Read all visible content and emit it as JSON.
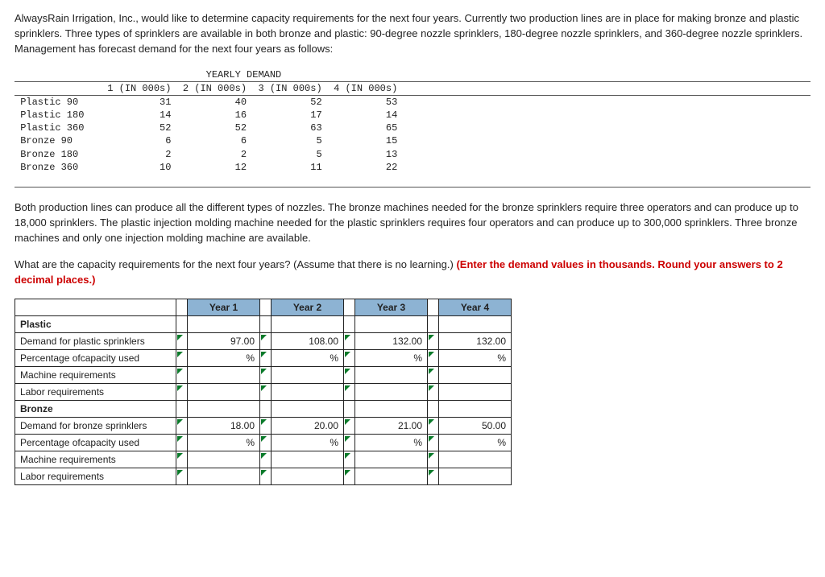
{
  "intro_para": "AlwaysRain Irrigation, Inc., would like to determine capacity requirements for the next four years. Currently two production lines are in place for making bronze and plastic sprinklers. Three types of sprinklers are available in both bronze and plastic: 90-degree nozzle sprinklers, 180-degree nozzle sprinklers, and 360-degree nozzle sprinklers. Management has forecast demand for the next four years as follows:",
  "demand_table": {
    "super_header": "YEARLY DEMAND",
    "col_headers": [
      "1 (IN 000s)",
      "2 (IN 000s)",
      "3 (IN 000s)",
      "4 (IN 000s)"
    ],
    "rows": [
      {
        "label": "Plastic 90",
        "v": [
          "31",
          "40",
          "52",
          "53"
        ]
      },
      {
        "label": "Plastic 180",
        "v": [
          "14",
          "16",
          "17",
          "14"
        ]
      },
      {
        "label": "Plastic 360",
        "v": [
          "52",
          "52",
          "63",
          "65"
        ]
      },
      {
        "label": "Bronze 90",
        "v": [
          "6",
          "6",
          "5",
          "15"
        ]
      },
      {
        "label": "Bronze 180",
        "v": [
          "2",
          "2",
          "5",
          "13"
        ]
      },
      {
        "label": "Bronze 360",
        "v": [
          "10",
          "12",
          "11",
          "22"
        ]
      }
    ]
  },
  "mid_para": "Both production lines can produce all the different types of nozzles. The bronze machines needed for the bronze sprinklers require three operators and can produce up to 18,000 sprinklers. The plastic injection molding machine needed for the plastic sprinklers requires four operators and can produce up to 300,000 sprinklers. Three bronze machines and only one injection molding machine are available.",
  "question_lead": "What are the capacity requirements for the next four years? (Assume that there is no learning.) ",
  "question_red": "(Enter the demand values in thousands. Round your answers to 2 decimal places.)",
  "answer_table": {
    "year_headers": [
      "Year 1",
      "Year 2",
      "Year 3",
      "Year 4"
    ],
    "sections": [
      {
        "title": "Plastic",
        "rows": [
          {
            "label": "Demand for plastic sprinklers",
            "kind": "value",
            "values": [
              "97.00",
              "108.00",
              "132.00",
              "132.00"
            ]
          },
          {
            "label": "Percentage ofcapacity used",
            "kind": "pct",
            "values": [
              "",
              "",
              "",
              ""
            ]
          },
          {
            "label": "Machine requirements",
            "kind": "value",
            "values": [
              "",
              "",
              "",
              ""
            ]
          },
          {
            "label": "Labor requirements",
            "kind": "value",
            "values": [
              "",
              "",
              "",
              ""
            ]
          }
        ]
      },
      {
        "title": "Bronze",
        "rows": [
          {
            "label": "Demand for bronze sprinklers",
            "kind": "value",
            "values": [
              "18.00",
              "20.00",
              "21.00",
              "50.00"
            ]
          },
          {
            "label": "Percentage ofcapacity used",
            "kind": "pct",
            "values": [
              "",
              "",
              "",
              ""
            ]
          },
          {
            "label": "Machine requirements",
            "kind": "value",
            "values": [
              "",
              "",
              "",
              ""
            ]
          },
          {
            "label": "Labor requirements",
            "kind": "value",
            "values": [
              "",
              "",
              "",
              ""
            ]
          }
        ]
      }
    ]
  }
}
